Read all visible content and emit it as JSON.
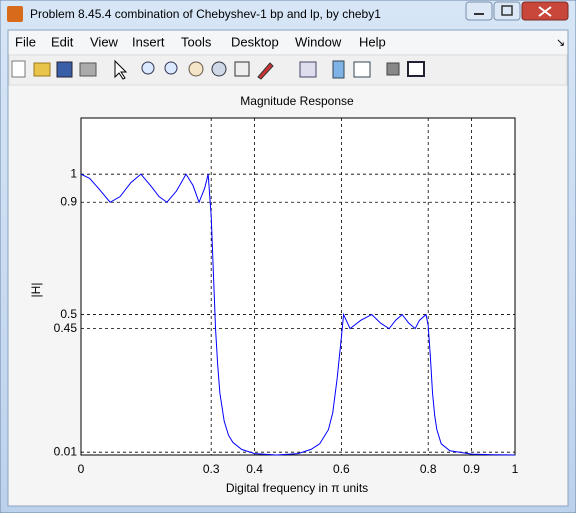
{
  "window": {
    "title": "Problem 8.45.4 combination of Chebyshev-1 bp and lp, by cheby1",
    "menu": [
      "File",
      "Edit",
      "View",
      "Insert",
      "Tools",
      "Desktop",
      "Window",
      "Help"
    ]
  },
  "chart_data": {
    "type": "line",
    "title": "Magnitude Response",
    "x_label": "Digital frequency in π units",
    "y_label": "|H|",
    "x": [
      0,
      0.02,
      0.04,
      0.067,
      0.09,
      0.115,
      0.138,
      0.16,
      0.18,
      0.198,
      0.22,
      0.242,
      0.258,
      0.272,
      0.285,
      0.293,
      0.3,
      0.305,
      0.31,
      0.315,
      0.32,
      0.33,
      0.34,
      0.35,
      0.37,
      0.4,
      0.45,
      0.5,
      0.53,
      0.55,
      0.57,
      0.58,
      0.59,
      0.6,
      0.605,
      0.62,
      0.645,
      0.67,
      0.69,
      0.71,
      0.725,
      0.74,
      0.755,
      0.77,
      0.78,
      0.795,
      0.8,
      0.805,
      0.81,
      0.815,
      0.82,
      0.83,
      0.85,
      0.9,
      0.95,
      1
    ],
    "series": [
      {
        "color": "#0000ff",
        "values": [
          1,
          0.985,
          0.95,
          0.9,
          0.92,
          0.97,
          1,
          0.96,
          0.92,
          0.9,
          0.94,
          1,
          0.96,
          0.9,
          0.95,
          1,
          0.85,
          0.65,
          0.45,
          0.32,
          0.22,
          0.12,
          0.07,
          0.045,
          0.02,
          0.005,
          0,
          0.005,
          0.02,
          0.04,
          0.09,
          0.15,
          0.27,
          0.42,
          0.5,
          0.45,
          0.48,
          0.5,
          0.47,
          0.45,
          0.48,
          0.5,
          0.47,
          0.45,
          0.48,
          0.5,
          0.46,
          0.35,
          0.22,
          0.14,
          0.09,
          0.04,
          0.015,
          0.003,
          0.001,
          0
        ]
      }
    ],
    "xlim": [
      0,
      1
    ],
    "ylim": [
      0,
      1.2
    ],
    "xticks": [
      0,
      0.3,
      0.4,
      0.6,
      0.8,
      0.9,
      1
    ],
    "yticks": [
      0.01,
      0.45,
      0.5,
      0.9,
      1
    ],
    "grid": true
  }
}
